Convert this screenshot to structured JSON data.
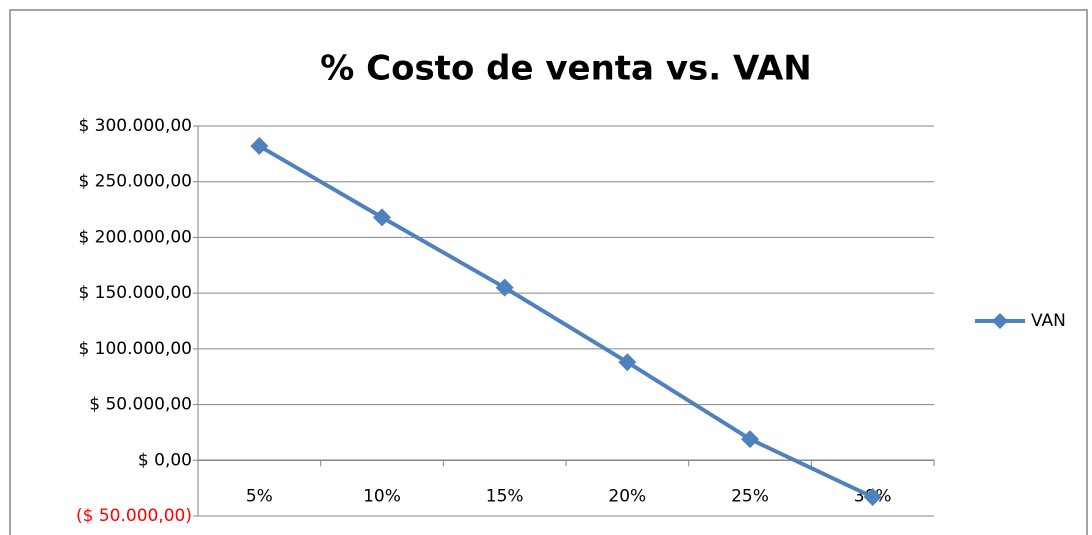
{
  "chart_data": {
    "type": "line",
    "title": "% Costo de venta vs. VAN",
    "categories": [
      "5%",
      "10%",
      "15%",
      "20%",
      "25%",
      "30%"
    ],
    "series": [
      {
        "name": "VAN",
        "color": "#4f81bd",
        "values": [
          282000,
          218000,
          155000,
          88000,
          19000,
          -33000
        ]
      }
    ],
    "ylim": [
      -50000,
      300000
    ],
    "yticks": [
      {
        "value": -50000,
        "label": "($ 50.000,00)"
      },
      {
        "value": 0,
        "label": "$ 0,00"
      },
      {
        "value": 50000,
        "label": "$ 50.000,00"
      },
      {
        "value": 100000,
        "label": "$ 100.000,00"
      },
      {
        "value": 150000,
        "label": "$ 150.000,00"
      },
      {
        "value": 200000,
        "label": "$ 200.000,00"
      },
      {
        "value": 250000,
        "label": "$ 250.000,00"
      },
      {
        "value": 300000,
        "label": "$ 300.000,00"
      }
    ],
    "grid": true,
    "legend": "right",
    "negative_color": "#ff0000"
  }
}
